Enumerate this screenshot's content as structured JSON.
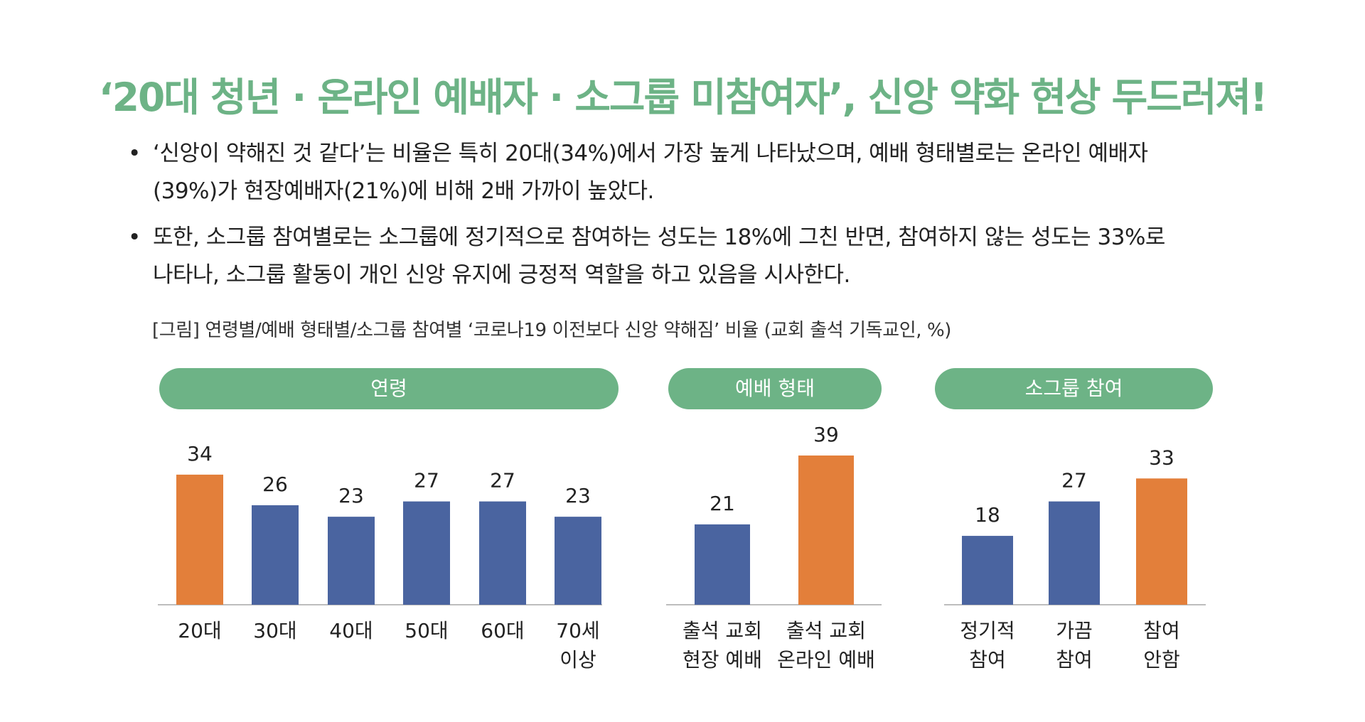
{
  "header": {
    "title": "‘20대 청년 · 온라인 예배자 · 소그룹 미참여자’, 신앙 약화 현상 두드러져!"
  },
  "bullets": [
    {
      "symbol": "•",
      "lines": [
        "‘신앙이 약해진 것 같다’는 비율은 특히 20대(34%)에서 가장 높게 나타났으며, 예배 형태별로는 온라인 예배자",
        "(39%)가 현장예배자(21%)에 비해 2배 가까이 높았다."
      ]
    },
    {
      "symbol": "•",
      "lines": [
        "또한, 소그룹 참여별로는 소그룹에 정기적으로 참여하는 성도는 18%에 그친 반면, 참여하지 않는 성도는 33%로",
        "나타나, 소그룹 활동이 개인 신앙 유지에 긍정적 역할을 하고 있음을 시사한다."
      ]
    }
  ],
  "figure": {
    "caption": "[그림] 연령별/예배 형태별/소그룹 참여별 ‘코로나19 이전보다 신앙 약해짐’ 비율 (교회 출석 기독교인, %)"
  },
  "colors": {
    "accent_green": "#6db386",
    "bar_blue": "#4a64a0",
    "bar_orange": "#e37f3a",
    "baseline": "#bdbdbd"
  },
  "chart_data": [
    {
      "type": "bar",
      "title": "연령",
      "categories": [
        [
          "20대"
        ],
        [
          "30대"
        ],
        [
          "40대"
        ],
        [
          "50대"
        ],
        [
          "60대"
        ],
        [
          "70세",
          "이상"
        ]
      ],
      "values": [
        34,
        26,
        23,
        27,
        27,
        23
      ],
      "colors": [
        "orange",
        "blue",
        "blue",
        "blue",
        "blue",
        "blue"
      ],
      "ylim": [
        0,
        40
      ]
    },
    {
      "type": "bar",
      "title": "예배 형태",
      "categories": [
        [
          "출석 교회",
          "현장 예배"
        ],
        [
          "출석 교회",
          "온라인 예배"
        ]
      ],
      "values": [
        21,
        39
      ],
      "colors": [
        "blue",
        "orange"
      ],
      "ylim": [
        0,
        40
      ]
    },
    {
      "type": "bar",
      "title": "소그룹 참여",
      "categories": [
        [
          "정기적",
          "참여"
        ],
        [
          "가끔",
          "참여"
        ],
        [
          "참여",
          "안함"
        ]
      ],
      "values": [
        18,
        27,
        33
      ],
      "colors": [
        "blue",
        "blue",
        "orange"
      ],
      "ylim": [
        0,
        40
      ]
    }
  ]
}
